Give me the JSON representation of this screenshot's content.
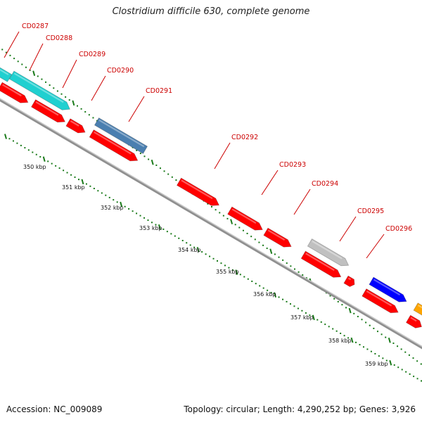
{
  "title": "Clostridium difficile 630, complete genome",
  "footer": {
    "accession": "Accession: NC_009089",
    "summary": "Topology: circular; Length: 4,290,252 bp; Genes: 3,926"
  },
  "colors": {
    "cds_forward": "#ff0000",
    "gene_label": "#cc0000",
    "tick": "#1a7a1a",
    "backbone": "#909090",
    "feature_cyan": "#20d0d0",
    "feature_steelblue": "#4a7fb0",
    "feature_gray": "#c0c0c0",
    "feature_blue": "#0000ff",
    "feature_orange": "#ffa500"
  },
  "gene_labels": [
    "CD0287",
    "CD0288",
    "CD0289",
    "CD0290",
    "CD0291",
    "CD0292",
    "CD0293",
    "CD0294",
    "CD0295",
    "CD0296"
  ],
  "kbp_labels": [
    "350 kbp",
    "351 kbp",
    "352 kbp",
    "353 kbp",
    "354 kbp",
    "355 kbp",
    "356 kbp",
    "357 kbp",
    "358 kbp",
    "359 kbp"
  ]
}
